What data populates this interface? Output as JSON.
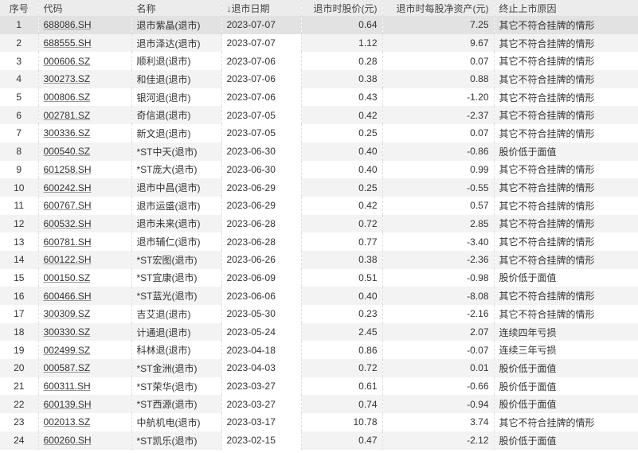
{
  "headers": {
    "idx": "序号",
    "code": "代码",
    "name": "名称",
    "sort_icon": "arrow-down-icon",
    "date": "退市日期",
    "price": "退市时股价(元)",
    "nav": "退市时每股净资产(元)",
    "reason": "终止上市原因"
  },
  "sort_arrow": "↓",
  "rows": [
    [
      "1",
      "688086.SH",
      "退市紫晶(退市)",
      "2023-07-07",
      "0.64",
      "7.25",
      "其它不符合挂牌的情形"
    ],
    [
      "2",
      "688555.SH",
      "退市泽达(退市)",
      "2023-07-07",
      "1.12",
      "9.67",
      "其它不符合挂牌的情形"
    ],
    [
      "3",
      "000606.SZ",
      "顺利退(退市)",
      "2023-07-06",
      "0.28",
      "0.07",
      "其它不符合挂牌的情形"
    ],
    [
      "4",
      "300273.SZ",
      "和佳退(退市)",
      "2023-07-06",
      "0.38",
      "0.88",
      "其它不符合挂牌的情形"
    ],
    [
      "5",
      "000806.SZ",
      "银河退(退市)",
      "2023-07-06",
      "0.43",
      "-1.20",
      "其它不符合挂牌的情形"
    ],
    [
      "6",
      "002781.SZ",
      "奇信退(退市)",
      "2023-07-05",
      "0.42",
      "-2.37",
      "其它不符合挂牌的情形"
    ],
    [
      "7",
      "300336.SZ",
      "新文退(退市)",
      "2023-07-05",
      "0.25",
      "0.07",
      "其它不符合挂牌的情形"
    ],
    [
      "8",
      "000540.SZ",
      "*ST中天(退市)",
      "2023-06-30",
      "0.40",
      "-0.86",
      "股价低于面值"
    ],
    [
      "9",
      "601258.SH",
      "*ST庞大(退市)",
      "2023-06-30",
      "0.40",
      "0.99",
      "其它不符合挂牌的情形"
    ],
    [
      "10",
      "600242.SH",
      "退市中昌(退市)",
      "2023-06-29",
      "0.25",
      "-0.55",
      "其它不符合挂牌的情形"
    ],
    [
      "11",
      "600767.SH",
      "退市运盛(退市)",
      "2023-06-29",
      "0.42",
      "0.57",
      "其它不符合挂牌的情形"
    ],
    [
      "12",
      "600532.SH",
      "退市未来(退市)",
      "2023-06-28",
      "0.72",
      "2.85",
      "其它不符合挂牌的情形"
    ],
    [
      "13",
      "600781.SH",
      "退市辅仁(退市)",
      "2023-06-28",
      "0.77",
      "-3.40",
      "其它不符合挂牌的情形"
    ],
    [
      "14",
      "600122.SH",
      "*ST宏图(退市)",
      "2023-06-26",
      "0.38",
      "-2.36",
      "其它不符合挂牌的情形"
    ],
    [
      "15",
      "000150.SZ",
      "*ST宜康(退市)",
      "2023-06-09",
      "0.51",
      "-0.98",
      "股价低于面值"
    ],
    [
      "16",
      "600466.SH",
      "*ST蓝光(退市)",
      "2023-06-06",
      "0.40",
      "-8.08",
      "其它不符合挂牌的情形"
    ],
    [
      "17",
      "300309.SZ",
      "吉艾退(退市)",
      "2023-05-30",
      "0.23",
      "-2.16",
      "其它不符合挂牌的情形"
    ],
    [
      "18",
      "300330.SZ",
      "计通退(退市)",
      "2023-05-24",
      "2.45",
      "2.07",
      "连续四年亏损"
    ],
    [
      "19",
      "002499.SZ",
      "科林退(退市)",
      "2023-04-18",
      "0.86",
      "-0.07",
      "连续三年亏损"
    ],
    [
      "20",
      "000587.SZ",
      "*ST金洲(退市)",
      "2023-04-03",
      "0.72",
      "0.01",
      "股价低于面值"
    ],
    [
      "21",
      "600311.SH",
      "*ST荣华(退市)",
      "2023-03-27",
      "0.61",
      "-0.66",
      "股价低于面值"
    ],
    [
      "22",
      "600139.SH",
      "*ST西源(退市)",
      "2023-03-27",
      "0.74",
      "-0.94",
      "股价低于面值"
    ],
    [
      "23",
      "002013.SZ",
      "中航机电(退市)",
      "2023-03-17",
      "10.78",
      "3.74",
      "其它不符合挂牌的情形"
    ],
    [
      "24",
      "600260.SH",
      "*ST凯乐(退市)",
      "2023-02-15",
      "0.47",
      "-2.12",
      "股价低于面值"
    ]
  ]
}
